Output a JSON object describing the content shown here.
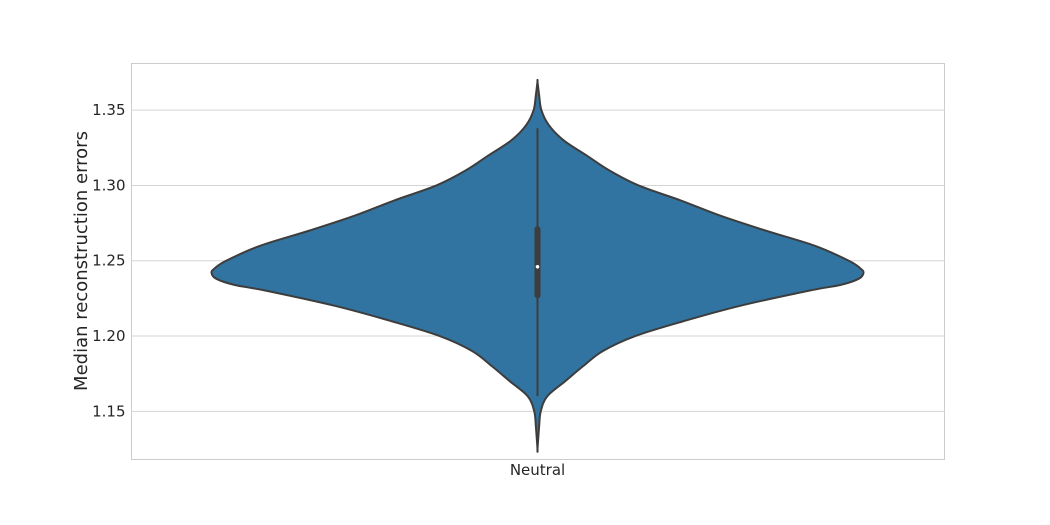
{
  "chart_data": {
    "type": "violin",
    "title": "",
    "xlabel": "",
    "ylabel": "Median reconstruction errors",
    "categories": [
      "Neutral"
    ],
    "ylim": [
      1.118,
      1.381
    ],
    "yticks": [
      1.15,
      1.2,
      1.25,
      1.3,
      1.35
    ],
    "ytick_labels": [
      "1.15",
      "1.20",
      "1.25",
      "1.30",
      "1.35"
    ],
    "grid": "y",
    "fill_color": "#3274a1",
    "edge_color": "#3d3d3d",
    "violins": [
      {
        "category": "Neutral",
        "kde_range": [
          1.125,
          1.369
        ],
        "density_profile": [
          {
            "y": 1.369,
            "w": 0.0
          },
          {
            "y": 1.36,
            "w": 0.005
          },
          {
            "y": 1.35,
            "w": 0.012
          },
          {
            "y": 1.34,
            "w": 0.035
          },
          {
            "y": 1.33,
            "w": 0.08
          },
          {
            "y": 1.32,
            "w": 0.15
          },
          {
            "y": 1.31,
            "w": 0.22
          },
          {
            "y": 1.3,
            "w": 0.31
          },
          {
            "y": 1.29,
            "w": 0.44
          },
          {
            "y": 1.28,
            "w": 0.56
          },
          {
            "y": 1.27,
            "w": 0.7
          },
          {
            "y": 1.26,
            "w": 0.85
          },
          {
            "y": 1.25,
            "w": 0.955
          },
          {
            "y": 1.245,
            "w": 0.99
          },
          {
            "y": 1.242,
            "w": 1.0
          },
          {
            "y": 1.238,
            "w": 0.985
          },
          {
            "y": 1.234,
            "w": 0.93
          },
          {
            "y": 1.23,
            "w": 0.83
          },
          {
            "y": 1.22,
            "w": 0.62
          },
          {
            "y": 1.21,
            "w": 0.45
          },
          {
            "y": 1.2,
            "w": 0.3
          },
          {
            "y": 1.19,
            "w": 0.2
          },
          {
            "y": 1.18,
            "w": 0.14
          },
          {
            "y": 1.17,
            "w": 0.085
          },
          {
            "y": 1.16,
            "w": 0.03
          },
          {
            "y": 1.15,
            "w": 0.01
          },
          {
            "y": 1.14,
            "w": 0.005
          },
          {
            "y": 1.125,
            "w": 0.0
          }
        ],
        "whisker_low": 1.16,
        "whisker_high": 1.338,
        "q1": 1.227,
        "q3": 1.271,
        "median": 1.246
      }
    ]
  }
}
